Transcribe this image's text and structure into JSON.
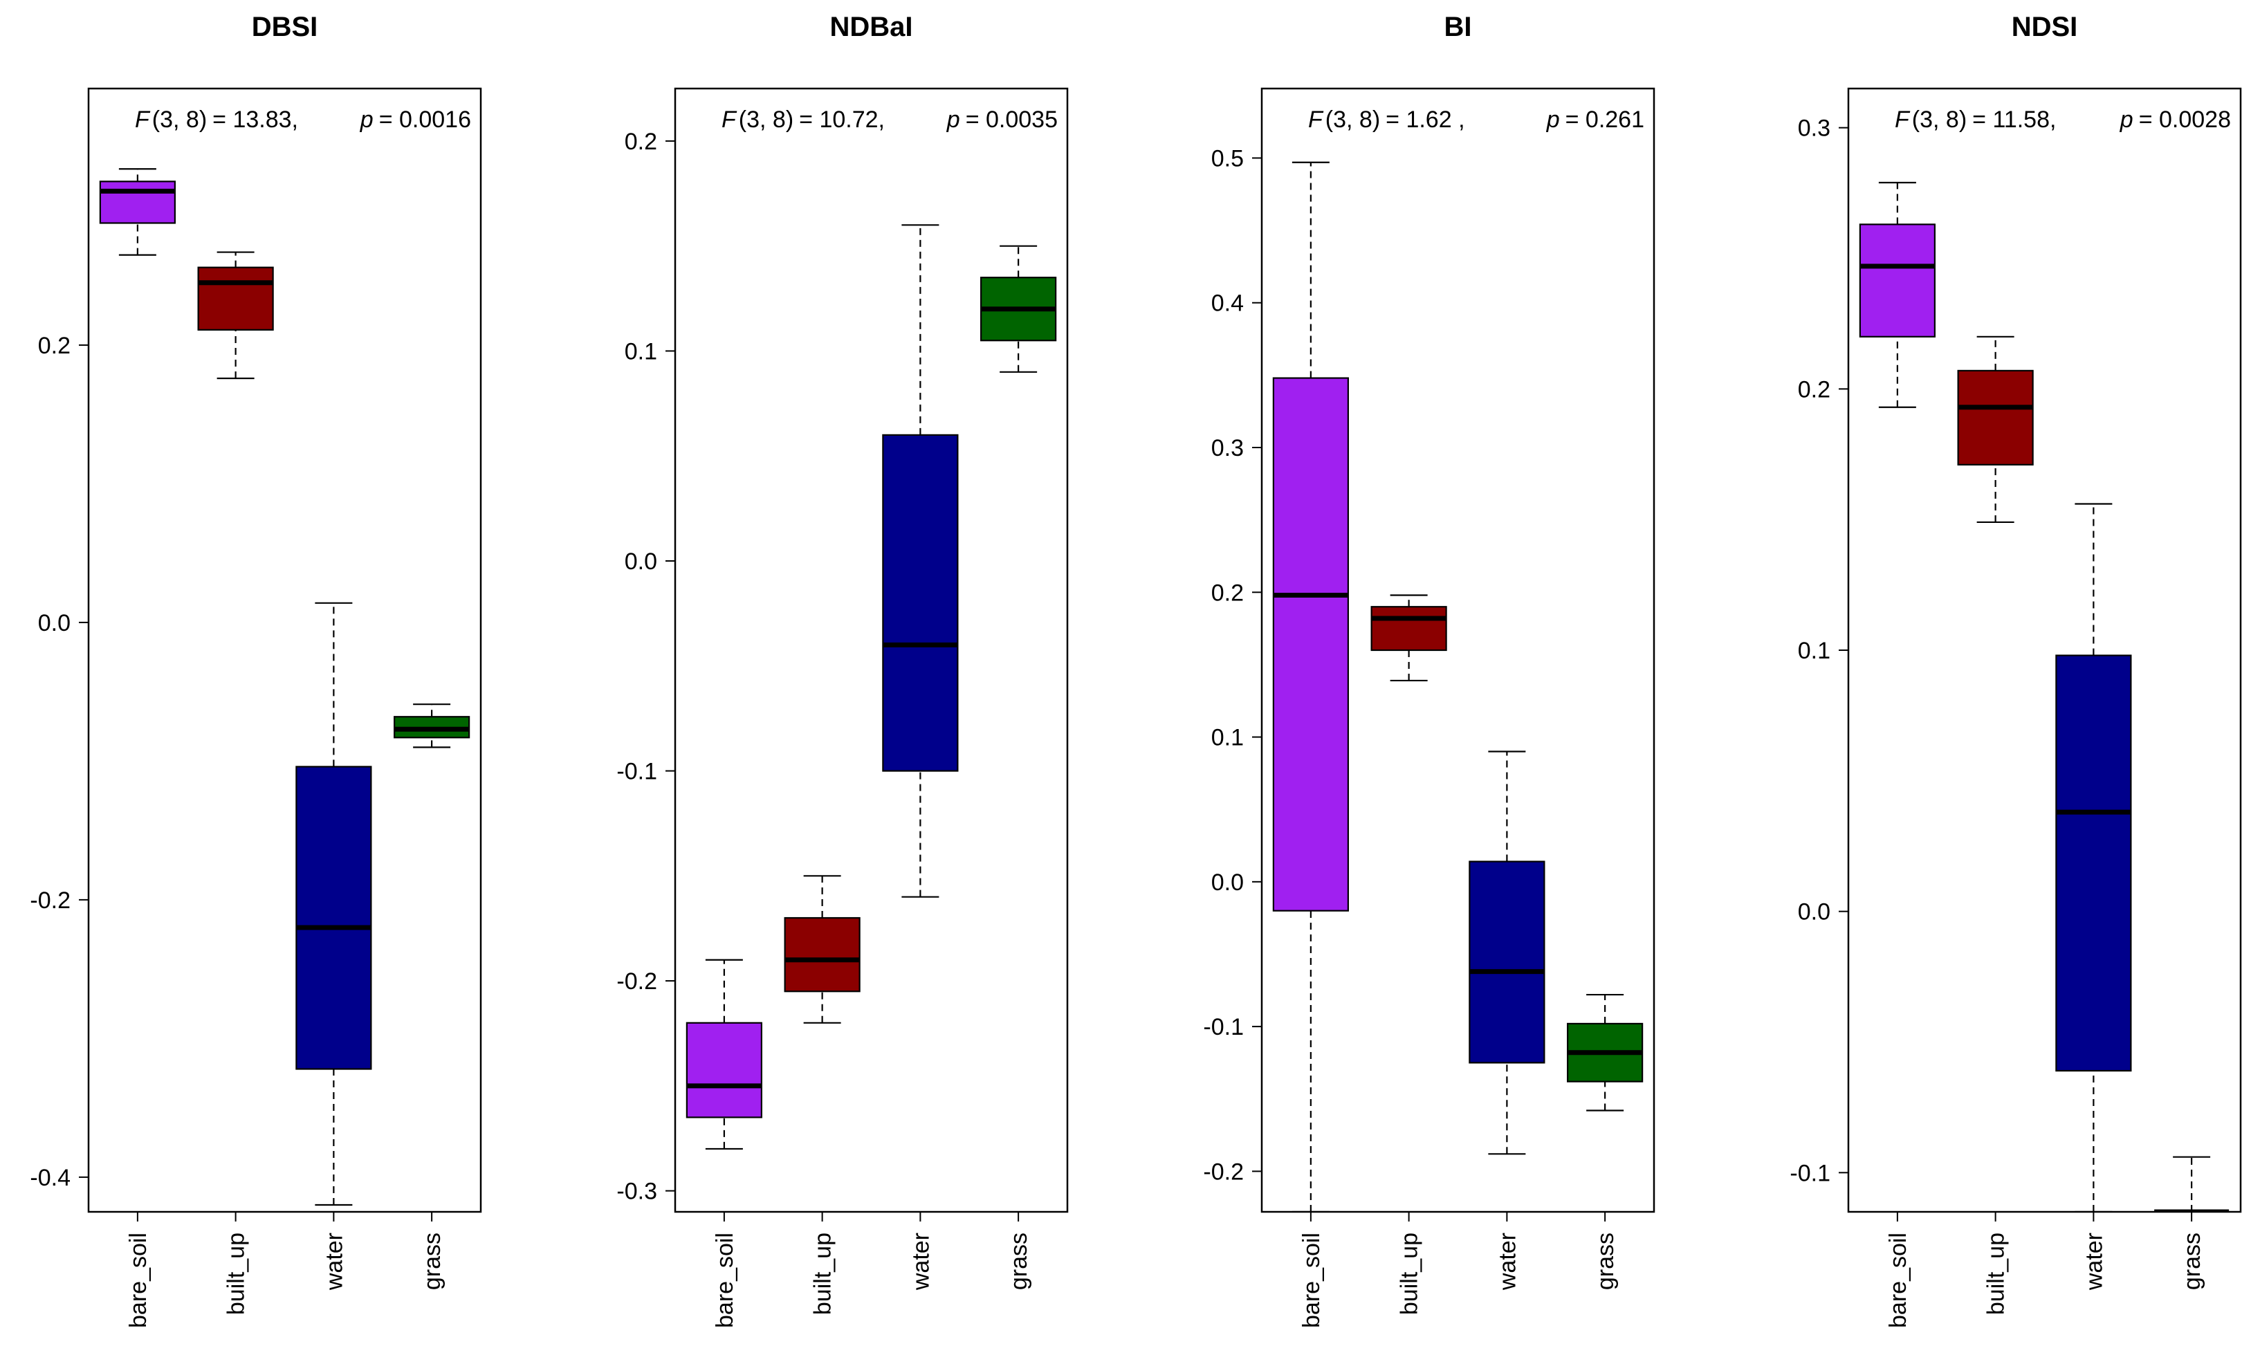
{
  "chart_data": [
    {
      "type": "box",
      "title": "DBSI",
      "categories": [
        "bare_soil",
        "built_up",
        "water",
        "grass"
      ],
      "colors": [
        "#a020f0",
        "#8b0000",
        "#00008b",
        "#006400"
      ],
      "ylim": [
        -0.425,
        0.385
      ],
      "yticks": [
        "0.2",
        "0.0",
        "-0.2",
        "-0.4"
      ],
      "ytick_values": [
        0.2,
        0.0,
        -0.2,
        -0.4
      ],
      "stat": {
        "f_symbol": "F",
        "df": "(3, 8)",
        "f_text": "= 13.83,",
        "p_symbol": "p",
        "p_text": "= 0.0016"
      },
      "boxes": [
        {
          "lower": 0.265,
          "q1": 0.288,
          "median": 0.311,
          "q3": 0.318,
          "upper": 0.327
        },
        {
          "lower": 0.176,
          "q1": 0.211,
          "median": 0.245,
          "q3": 0.256,
          "upper": 0.267
        },
        {
          "lower": -0.42,
          "q1": -0.322,
          "median": -0.22,
          "q3": -0.104,
          "upper": 0.014
        },
        {
          "lower": -0.09,
          "q1": -0.083,
          "median": -0.077,
          "q3": -0.068,
          "upper": -0.059
        }
      ]
    },
    {
      "type": "box",
      "title": "NDBaI",
      "categories": [
        "bare_soil",
        "built_up",
        "water",
        "grass"
      ],
      "colors": [
        "#a020f0",
        "#8b0000",
        "#00008b",
        "#006400"
      ],
      "ylim": [
        -0.31,
        0.225
      ],
      "yticks": [
        "0.2",
        "0.1",
        "0.0",
        "-0.1",
        "-0.2",
        "-0.3"
      ],
      "ytick_values": [
        0.2,
        0.1,
        0.0,
        -0.1,
        -0.2,
        -0.3
      ],
      "stat": {
        "f_symbol": "F",
        "df": "(3, 8)",
        "f_text": "= 10.72,",
        "p_symbol": "p",
        "p_text": "= 0.0035"
      },
      "boxes": [
        {
          "lower": -0.28,
          "q1": -0.265,
          "median": -0.25,
          "q3": -0.22,
          "upper": -0.19
        },
        {
          "lower": -0.22,
          "q1": -0.205,
          "median": -0.19,
          "q3": -0.17,
          "upper": -0.15
        },
        {
          "lower": -0.16,
          "q1": -0.1,
          "median": -0.04,
          "q3": 0.06,
          "upper": 0.16
        },
        {
          "lower": 0.09,
          "q1": 0.105,
          "median": 0.12,
          "q3": 0.135,
          "upper": 0.15
        }
      ]
    },
    {
      "type": "box",
      "title": "BI",
      "categories": [
        "bare_soil",
        "built_up",
        "water",
        "grass"
      ],
      "colors": [
        "#a020f0",
        "#8b0000",
        "#00008b",
        "#006400"
      ],
      "ylim": [
        -0.228,
        0.548
      ],
      "yticks": [
        "0.5",
        "0.4",
        "0.3",
        "0.2",
        "0.1",
        "0.0",
        "-0.1",
        "-0.2"
      ],
      "ytick_values": [
        0.5,
        0.4,
        0.3,
        0.2,
        0.1,
        0.0,
        -0.1,
        -0.2
      ],
      "stat": {
        "f_symbol": "F",
        "df": "(3, 8)",
        "f_text": "= 1.62 ,",
        "p_symbol": "p",
        "p_text": "= 0.261"
      },
      "boxes": [
        {
          "lower": -0.228,
          "q1": -0.02,
          "median": 0.198,
          "q3": 0.348,
          "upper": 0.497
        },
        {
          "lower": 0.139,
          "q1": 0.16,
          "median": 0.182,
          "q3": 0.19,
          "upper": 0.198
        },
        {
          "lower": -0.188,
          "q1": -0.125,
          "median": -0.062,
          "q3": 0.014,
          "upper": 0.09
        },
        {
          "lower": -0.158,
          "q1": -0.138,
          "median": -0.118,
          "q3": -0.098,
          "upper": -0.078
        }
      ]
    },
    {
      "type": "box",
      "title": "NDSI",
      "categories": [
        "bare_soil",
        "built_up",
        "water",
        "grass"
      ],
      "colors": [
        "#a020f0",
        "#8b0000",
        "#00008b",
        "#006400"
      ],
      "ylim": [
        -0.115,
        0.315
      ],
      "yticks": [
        "0.3",
        "0.2",
        "0.1",
        "0.0",
        "-0.1"
      ],
      "ytick_values": [
        0.3,
        0.2,
        0.1,
        0.0,
        -0.1
      ],
      "stat": {
        "f_symbol": "F",
        "df": "(3, 8)",
        "f_text": "= 11.58,",
        "p_symbol": "p",
        "p_text": "= 0.0028"
      },
      "boxes": [
        {
          "lower": 0.193,
          "q1": 0.22,
          "median": 0.247,
          "q3": 0.263,
          "upper": 0.279
        },
        {
          "lower": 0.149,
          "q1": 0.171,
          "median": 0.193,
          "q3": 0.207,
          "upper": 0.22
        },
        {
          "lower": -0.115,
          "q1": -0.061,
          "median": 0.038,
          "q3": 0.098,
          "upper": 0.156
        },
        {
          "lower": -0.115,
          "q1": -0.115,
          "median": -0.115,
          "q3": -0.115,
          "upper": -0.094
        }
      ]
    }
  ]
}
